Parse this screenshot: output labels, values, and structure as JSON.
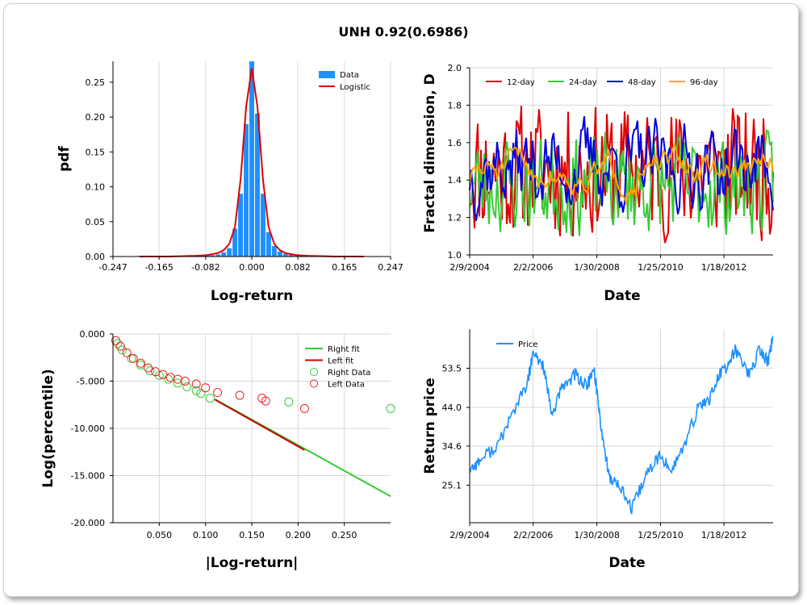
{
  "title": "UNH 0.92(0.6986)",
  "chart_data": [
    {
      "type": "bar",
      "subtype": "histogram-with-fit",
      "xlabel": "Log-return",
      "ylabel": "pdf",
      "xlim": [
        -0.247,
        0.247
      ],
      "ylim": [
        0,
        0.28
      ],
      "xticks": [
        "-0.247",
        "-0.165",
        "-0.082",
        "0.000",
        "0.082",
        "0.165",
        "0.247"
      ],
      "yticks": [
        "0.00",
        "0.05",
        "0.10",
        "0.15",
        "0.20",
        "0.25"
      ],
      "legend": [
        "Data",
        "Logistic"
      ],
      "legend_position": "top-right",
      "colors": {
        "Data": "#1e90ff",
        "Logistic": "#e00000"
      },
      "bins_x": [
        -0.14,
        -0.13,
        -0.12,
        -0.11,
        -0.1,
        -0.09,
        -0.08,
        -0.07,
        -0.06,
        -0.05,
        -0.04,
        -0.03,
        -0.02,
        -0.01,
        0.0,
        0.01,
        0.02,
        0.03,
        0.04,
        0.05,
        0.06,
        0.07,
        0.08,
        0.09,
        0.1,
        0.11
      ],
      "bins_y": [
        0.0005,
        0.0005,
        0.001,
        0.001,
        0.001,
        0.001,
        0.002,
        0.002,
        0.003,
        0.006,
        0.012,
        0.04,
        0.09,
        0.19,
        0.28,
        0.205,
        0.09,
        0.035,
        0.015,
        0.007,
        0.004,
        0.003,
        0.002,
        0.001,
        0.001,
        0.001
      ],
      "fit_x": [
        -0.2,
        -0.15,
        -0.1,
        -0.08,
        -0.06,
        -0.05,
        -0.04,
        -0.03,
        -0.02,
        -0.01,
        0.0,
        0.01,
        0.02,
        0.03,
        0.04,
        0.05,
        0.06,
        0.08,
        0.1,
        0.15,
        0.2
      ],
      "fit_y": [
        0.0,
        0.0,
        0.001,
        0.002,
        0.005,
        0.009,
        0.018,
        0.042,
        0.11,
        0.215,
        0.27,
        0.215,
        0.11,
        0.042,
        0.018,
        0.009,
        0.005,
        0.002,
        0.001,
        0.0,
        0.0
      ]
    },
    {
      "type": "line",
      "xlabel": "Date",
      "ylabel": "Fractal dimension, D",
      "xlim": [
        "2004-02-09",
        "2013-08-01"
      ],
      "ylim": [
        1.0,
        2.0
      ],
      "xticks": [
        "2/9/2004",
        "2/2/2006",
        "1/30/2008",
        "1/25/2010",
        "1/18/2012"
      ],
      "yticks": [
        "1.0",
        "1.2",
        "1.4",
        "1.6",
        "1.8",
        "2.0"
      ],
      "legend_position": "top",
      "series": [
        {
          "name": "12-day",
          "color": "#e00000"
        },
        {
          "name": "24-day",
          "color": "#33cc33"
        },
        {
          "name": "48-day",
          "color": "#0000dd"
        },
        {
          "name": "96-day",
          "color": "#ffa500"
        }
      ]
    },
    {
      "type": "scatter",
      "xlabel": "|Log-return|",
      "ylabel": "Log(percentile)",
      "xlim": [
        0,
        0.3
      ],
      "ylim": [
        -20,
        0
      ],
      "xticks": [
        "0.050",
        "0.100",
        "0.150",
        "0.200",
        "0.250"
      ],
      "yticks": [
        "0.000",
        "-5.000",
        "-10.000",
        "-15.000",
        "-20.000"
      ],
      "legend_position": "top-right",
      "series": [
        {
          "name": "Right fit",
          "color": "#33cc33",
          "x": [
            0.11,
            0.3
          ],
          "y": [
            -6.9,
            -17.2
          ]
        },
        {
          "name": "Left fit",
          "color": "#cc0000",
          "x": [
            0.11,
            0.207
          ],
          "y": [
            -6.95,
            -12.3
          ]
        },
        {
          "name": "Right Data",
          "color": "#33cc33",
          "x": [
            0.005,
            0.01,
            0.02,
            0.03,
            0.04,
            0.05,
            0.06,
            0.07,
            0.08,
            0.09,
            0.095,
            0.105,
            0.19,
            0.3
          ],
          "y": [
            -1.0,
            -1.7,
            -2.6,
            -3.3,
            -3.9,
            -4.4,
            -4.8,
            -5.2,
            -5.6,
            -6.0,
            -6.3,
            -6.8,
            -7.2,
            -7.9
          ]
        },
        {
          "name": "Left Data",
          "color": "#ee2222",
          "x": [
            0.003,
            0.008,
            0.015,
            0.022,
            0.03,
            0.038,
            0.046,
            0.054,
            0.062,
            0.07,
            0.078,
            0.09,
            0.1,
            0.113,
            0.137,
            0.161,
            0.165,
            0.207
          ],
          "y": [
            -0.7,
            -1.3,
            -2.0,
            -2.6,
            -3.1,
            -3.6,
            -4.0,
            -4.3,
            -4.6,
            -4.8,
            -5.0,
            -5.3,
            -5.7,
            -6.2,
            -6.5,
            -6.8,
            -7.1,
            -7.9
          ]
        }
      ]
    },
    {
      "type": "line",
      "xlabel": "Date",
      "ylabel": "Return price",
      "xlim": [
        "2004-02-09",
        "2013-08-01"
      ],
      "ylim": [
        16,
        63
      ],
      "xticks": [
        "2/9/2004",
        "2/2/2006",
        "1/30/2008",
        "1/25/2010",
        "1/18/2012"
      ],
      "yticks": [
        "25.1",
        "34.6",
        "44.0",
        "53.5"
      ],
      "legend_position": "top-left",
      "series": [
        {
          "name": "Price",
          "color": "#1e90ff",
          "x": [
            "2004-02-09",
            "2004-06-01",
            "2005-01-01",
            "2005-06-01",
            "2005-12-01",
            "2006-02-01",
            "2006-06-01",
            "2006-09-01",
            "2007-01-01",
            "2007-06-01",
            "2007-10-01",
            "2008-01-01",
            "2008-04-01",
            "2008-07-01",
            "2008-10-01",
            "2009-03-01",
            "2009-08-01",
            "2010-01-01",
            "2010-06-01",
            "2010-11-01",
            "2011-04-01",
            "2011-08-01",
            "2011-12-01",
            "2012-03-01",
            "2012-06-01",
            "2012-11-01",
            "2013-03-01",
            "2013-06-01",
            "2013-08-01"
          ],
          "y": [
            29,
            31,
            35,
            42,
            50,
            57,
            54,
            42,
            49,
            52,
            49,
            53,
            37,
            26,
            26,
            19,
            27,
            32,
            29,
            35,
            44,
            46,
            52,
            54,
            58,
            52,
            58,
            55,
            61
          ]
        }
      ]
    }
  ]
}
